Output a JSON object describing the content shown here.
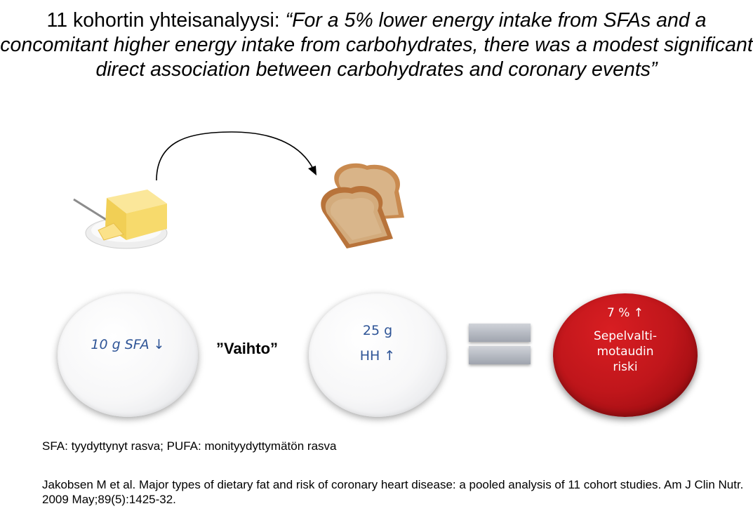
{
  "title": {
    "prefix": "11 kohortin yhteisanalyysi: ",
    "quote": "“For a 5% lower energy intake from SFAs and a concomitant higher energy intake from carbohydrates, there was a modest significant direct association between carbohydrates and coronary events”"
  },
  "left_plate": {
    "text": "10 g SFA ↓"
  },
  "swap_label": "”Vaihto”",
  "right_plate": {
    "line1": "25 g",
    "line2": "HH  ↑"
  },
  "result": {
    "percent": "7 % ↑",
    "lines": [
      "Sepelvalti-",
      "motaudin",
      "riski"
    ]
  },
  "abbreviations": "SFA: tyydyttynyt rasva; PUFA: monityydyttymätön rasva",
  "reference": "Jakobsen M et al. Major types of dietary fat and risk of coronary heart disease: a pooled analysis of 11 cohort studies. Am J Clin Nutr. 2009 May;89(5):1425-32.",
  "colors": {
    "plate_text": "#2f5597",
    "risk_red": "#c0161b",
    "equals_gray": "#b9bdc5"
  },
  "icons": [
    "curved-arrow-icon",
    "butter-image",
    "bread-image",
    "equals-icon"
  ]
}
